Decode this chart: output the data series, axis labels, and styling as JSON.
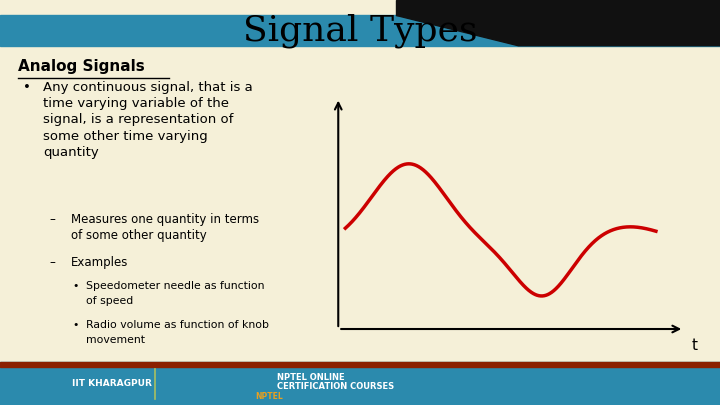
{
  "title": "Signal Types",
  "title_fontsize": 26,
  "title_color": "#000000",
  "background_color": "#f5f0d8",
  "header_bar_color": "#2b8aad",
  "header_bar_height": 0.075,
  "top_black_bar_height": 0.038,
  "footer_bar_color": "#2b8aad",
  "footer_bar_height": 0.105,
  "footer_red_line_color": "#8B2000",
  "analog_signals_label": "Analog Signals",
  "bullet1_line1": "Any continuous signal, that is a",
  "bullet1_line2": "time varying variable of the",
  "bullet1_line3": "signal, is a representation of",
  "bullet1_line4": "some other time varying",
  "bullet1_line5": "quantity",
  "dash1_line1": "Measures one quantity in terms",
  "dash1_line2": "of some other quantity",
  "dash2": "Examples",
  "sub1_line1": "Speedometer needle as function",
  "sub1_line2": "of speed",
  "sub2_line1": "Radio volume as function of knob",
  "sub2_line2": "movement",
  "curve_color": "#cc0000",
  "curve_linewidth": 2.5,
  "t_label": "t",
  "iit_text": "IIT KHARAGPUR",
  "nptel_line1": "NPTEL ONLINE",
  "nptel_line2": "CERTIFICATION COURSES",
  "nptel_label": "NPTEL"
}
